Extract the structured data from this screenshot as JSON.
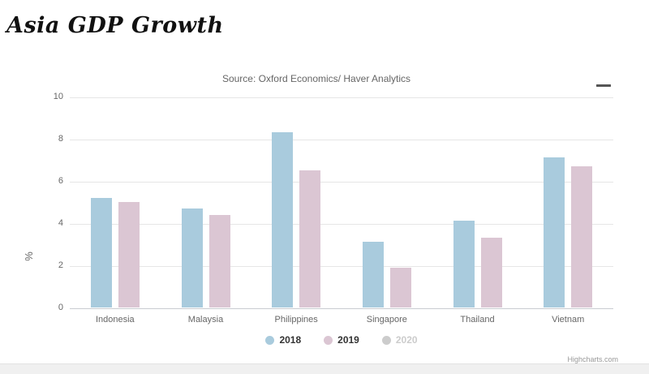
{
  "header": {
    "title": "Asia GDP Growth"
  },
  "chart": {
    "subtitle": "Source: Oxford Economics/ Haver Analytics",
    "credits": "Highcharts.com"
  },
  "colors": {
    "series_2018": "#a9cbdd",
    "series_2019": "#dbc6d3",
    "legend_disabled": "#cccccc",
    "grid": "#e6e6e6",
    "axis_line": "#c9ccd1",
    "axis_label": "#666666",
    "legend_text": "#333333",
    "title_text": "#111111",
    "subtitle_text": "#666666",
    "credits_text": "#999999",
    "menu_icon": "#555555"
  },
  "chart_data": {
    "type": "bar",
    "title": "Asia GDP Growth",
    "subtitle": "Source: Oxford Economics/ Haver Analytics",
    "categories": [
      "Indonesia",
      "Malaysia",
      "Philippines",
      "Singapore",
      "Thailand",
      "Vietnam"
    ],
    "series": [
      {
        "name": "2018",
        "color": "#a9cbdd",
        "visible": true,
        "values": [
          5.2,
          4.7,
          8.3,
          3.1,
          4.1,
          7.1
        ]
      },
      {
        "name": "2019",
        "color": "#dbc6d3",
        "visible": true,
        "values": [
          5.0,
          4.4,
          6.5,
          1.9,
          3.3,
          6.7
        ]
      },
      {
        "name": "2020",
        "color": "#cccccc",
        "visible": false,
        "values": [
          null,
          null,
          null,
          null,
          null,
          null
        ]
      }
    ],
    "xlabel": "",
    "ylabel": "%",
    "yticks": [
      0,
      2,
      4,
      6,
      8,
      10
    ],
    "ylim": [
      0,
      10
    ],
    "grid": true,
    "legend_position": "bottom",
    "legend_marker": "circle"
  }
}
